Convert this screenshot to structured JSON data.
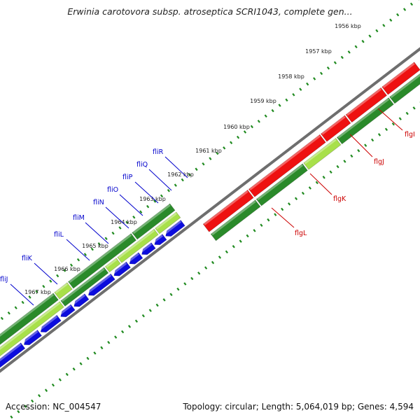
{
  "title": "Erwinia carotovora subsp. atroseptica SCRI1043, complete gen...",
  "footer": {
    "accession": "Accession: NC_004547",
    "summary": "Topology: circular; Length: 5,064,019 bp; Genes: 4,594"
  },
  "colors": {
    "backbone": "#6e6e6e",
    "tick": "#1f8a1f",
    "red_gene": "#ee1111",
    "green_gene": "#2a8a2a",
    "light_green_gene": "#a8e04a",
    "blue_gene": "#0c0cdd",
    "red_label": "#cc0000",
    "blue_label": "#0000cc"
  },
  "scale_labels": [
    "1956 kbp",
    "1957 kbp",
    "1958 kbp",
    "1959 kbp",
    "1960 kbp",
    "1961 kbp",
    "1962 kbp",
    "1963 kbp",
    "1964 kbp",
    "1965 kbp",
    "1966 kbp",
    "1967 kbp"
  ],
  "genes_red_side": [
    "flgI",
    "flgJ",
    "flgK",
    "flgL"
  ],
  "genes_blue_side": [
    "fliR",
    "fliQ",
    "fliP",
    "fliO",
    "fliN",
    "fliM",
    "fliL",
    "fliK",
    "fliJ"
  ]
}
